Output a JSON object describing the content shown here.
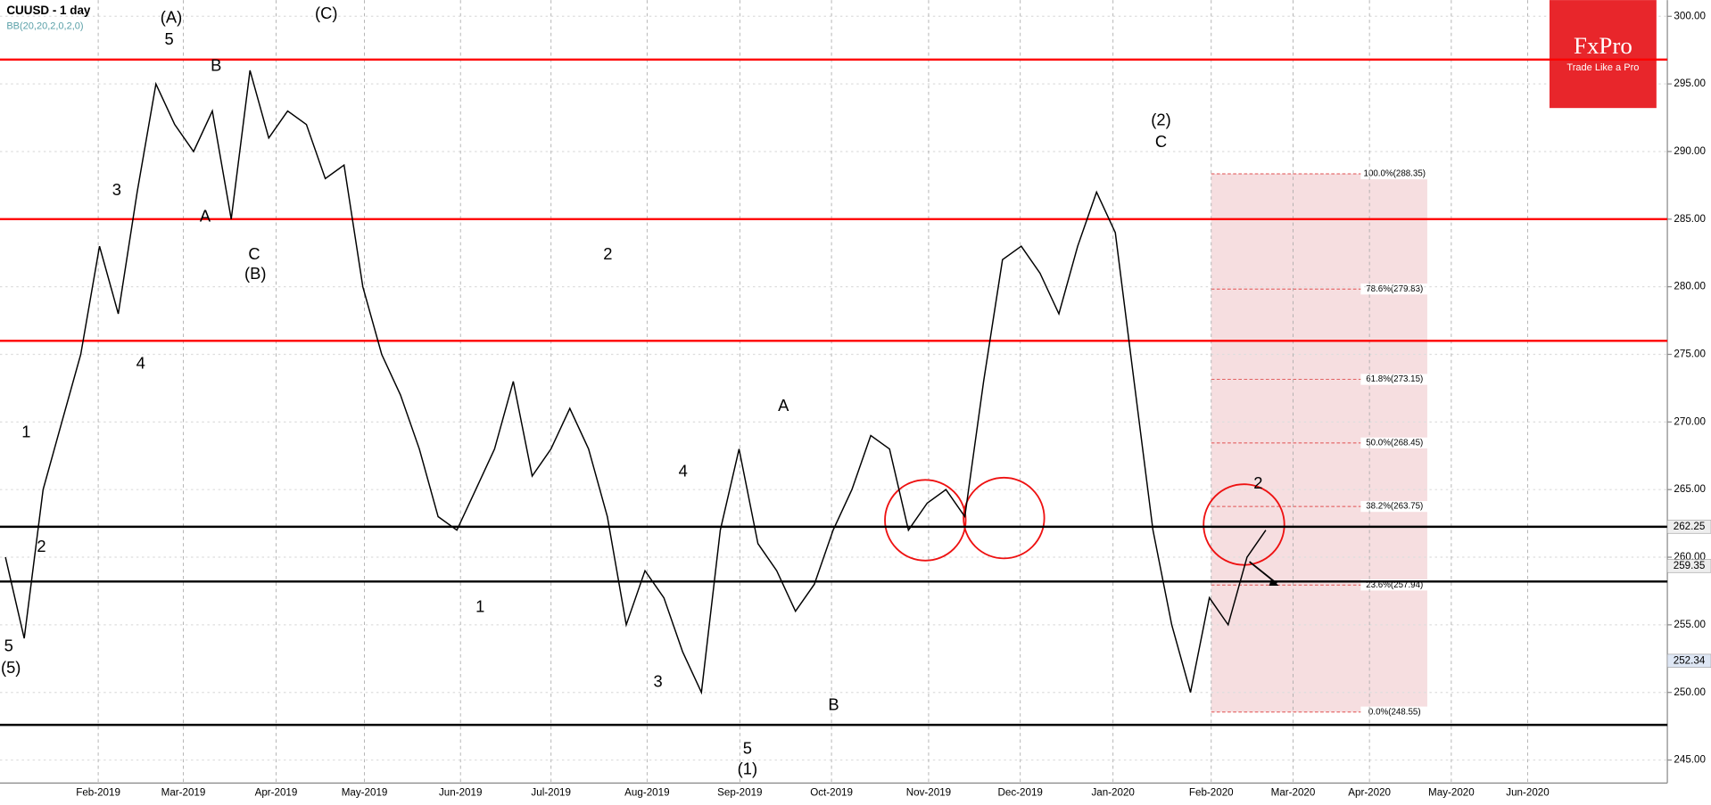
{
  "chart_data": {
    "type": "line",
    "title": "CUUSD - 1 day",
    "subtitle": "BB(20,20,2,0,2,0)",
    "logo": {
      "brand": "FxPro",
      "tagline": "Trade Like a Pro"
    },
    "series": [
      {
        "name": "CUUSD",
        "color": "#000000",
        "values": [
          260,
          254,
          265,
          270,
          275,
          283,
          278,
          287,
          295,
          292,
          290,
          293,
          285,
          296,
          291,
          293,
          292,
          288,
          289,
          280,
          275,
          272,
          268,
          263,
          262,
          265,
          268,
          273,
          266,
          268,
          271,
          268,
          263,
          255,
          259,
          257,
          253,
          250,
          262,
          268,
          261,
          259,
          256,
          258,
          262,
          265,
          269,
          268,
          262,
          264,
          265,
          263,
          273,
          282,
          283,
          281,
          278,
          283,
          287,
          284,
          273,
          262,
          255,
          250,
          257,
          255,
          260,
          262
        ]
      }
    ],
    "xtick_labels": [
      "Feb-2019",
      "Mar-2019",
      "Apr-2019",
      "May-2019",
      "Jun-2019",
      "Jul-2019",
      "Aug-2019",
      "Sep-2019",
      "Oct-2019",
      "Nov-2019",
      "Dec-2019",
      "Jan-2020",
      "Feb-2020",
      "Mar-2020",
      "Apr-2020",
      "May-2020",
      "Jun-2020"
    ],
    "ylim": [
      243.3,
      301.2
    ],
    "yticks": [
      {
        "value": 245,
        "label": "245.00"
      },
      {
        "value": 250,
        "label": "250.00"
      },
      {
        "value": 255,
        "label": "255.00"
      },
      {
        "value": 260,
        "label": "260.00"
      },
      {
        "value": 265,
        "label": "265.00"
      },
      {
        "value": 270,
        "label": "270.00"
      },
      {
        "value": 275,
        "label": "275.00"
      },
      {
        "value": 280,
        "label": "280.00"
      },
      {
        "value": 285,
        "label": "285.00"
      },
      {
        "value": 290,
        "label": "290.00"
      },
      {
        "value": 295,
        "label": "295.00"
      },
      {
        "value": 300,
        "label": "300.00"
      }
    ],
    "grid": true,
    "resistance_lines": {
      "color": "#ff0000",
      "values": [
        296.8,
        285.0,
        276.0
      ]
    },
    "support_lines": {
      "color": "#000000",
      "values": [
        262.25,
        258.2,
        247.6
      ]
    },
    "price_tags": [
      {
        "value": 262.25,
        "label": "262.25"
      },
      {
        "value": 259.35,
        "label": "259.35"
      },
      {
        "value": 252.34,
        "label": "252.34"
      }
    ],
    "fibonacci": [
      {
        "value": 288.35,
        "label": "100.0%(288.35)"
      },
      {
        "value": 279.83,
        "label": "78.6%(279.83)"
      },
      {
        "value": 273.15,
        "label": "61.8%(273.15)"
      },
      {
        "value": 268.45,
        "label": "50.0%(268.45)"
      },
      {
        "value": 263.75,
        "label": "38.2%(263.75)"
      },
      {
        "value": 257.94,
        "label": "23.6%(257.94)"
      },
      {
        "value": 248.55,
        "label": "0.0%(248.55)"
      }
    ],
    "annotations": [
      "(A)",
      "5",
      "(C)",
      "B",
      "A",
      "C",
      "(B)",
      "3",
      "4",
      "1",
      "2",
      "2",
      "4",
      "3",
      "A",
      "B",
      "5",
      "(1)",
      "(2)",
      "C",
      "1",
      "5",
      "(5)",
      "2"
    ]
  }
}
